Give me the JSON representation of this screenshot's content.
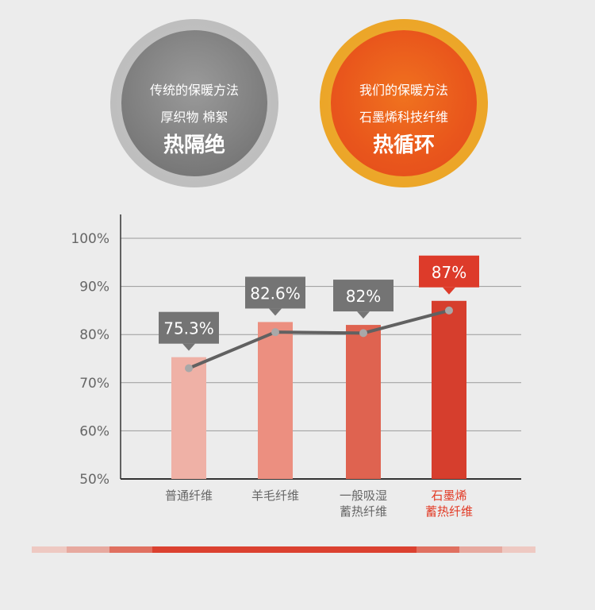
{
  "badges": [
    {
      "line1": "传统的保暖方法",
      "line2": "厚织物 棉絮",
      "line3": "热隔绝"
    },
    {
      "line1": "我们的保暖方法",
      "line2": "石墨烯科技纤维",
      "line3": "热循环"
    }
  ],
  "chart_data": {
    "type": "bar",
    "categories": [
      [
        "普通纤维"
      ],
      [
        "羊毛纤维"
      ],
      [
        "一般吸湿",
        "蓄热纤维"
      ],
      [
        "石墨烯",
        "蓄热纤维"
      ]
    ],
    "values": [
      75.3,
      82.6,
      82,
      87
    ],
    "value_labels": [
      "75.3%",
      "82.6%",
      "82%",
      "87%"
    ],
    "line_values": [
      73,
      80.5,
      80.3,
      85
    ],
    "y_ticks": [
      "50%",
      "60%",
      "70%",
      "80%",
      "90%",
      "100%"
    ],
    "ylim": [
      50,
      100
    ],
    "grid": true,
    "colors": {
      "bars": [
        "#efb1a6",
        "#ec8f80",
        "#df6350",
        "#d63e2d"
      ],
      "label_box": [
        "#747474",
        "#747474",
        "#747474",
        "#dd3b2a"
      ],
      "category_text": [
        "#666666",
        "#666666",
        "#666666",
        "#e23a25"
      ],
      "line": "#616161",
      "marker": "#a8a8a8"
    }
  },
  "bottom_bar_colors": [
    "#eec9c2",
    "#e7a99f",
    "#e07060",
    "#db4130",
    "#e07060",
    "#e7a99f",
    "#eec9c2"
  ]
}
